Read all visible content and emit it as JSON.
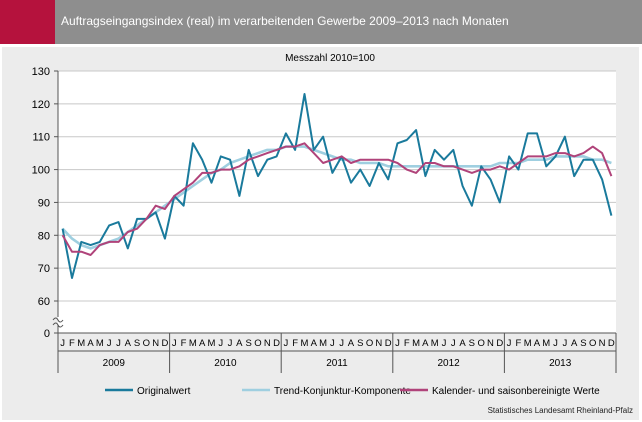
{
  "header": {
    "title": "Auftragseingangsindex (real) im verarbeitenden Gewerbe 2009–2013 nach Monaten"
  },
  "source": "Statistisches Landesamt Rheinland-Pfalz",
  "colors": {
    "header_bg": "#8e8e8e",
    "accent": "#b5123d",
    "panel_bg": "#ececec",
    "original": "#1a7a9c",
    "trend": "#9fcfe0",
    "adjusted": "#b0437a"
  },
  "chart_data": {
    "type": "line",
    "subtitle": "Messzahl 2010=100",
    "ylim": [
      0,
      130
    ],
    "axis_break": [
      0,
      60
    ],
    "yticks": [
      0,
      60,
      70,
      80,
      90,
      100,
      110,
      120,
      130
    ],
    "month_labels": [
      "J",
      "F",
      "M",
      "A",
      "M",
      "J",
      "J",
      "A",
      "S",
      "O",
      "N",
      "D",
      "J",
      "F",
      "M",
      "A",
      "M",
      "J",
      "J",
      "A",
      "S",
      "O",
      "N",
      "D",
      "J",
      "F",
      "M",
      "A",
      "M",
      "J",
      "J",
      "A",
      "S",
      "O",
      "N",
      "D",
      "J",
      "F",
      "M",
      "A",
      "M",
      "J",
      "J",
      "A",
      "S",
      "O",
      "N",
      "D",
      "J",
      "F",
      "M",
      "A",
      "M",
      "J",
      "J",
      "A",
      "S",
      "O",
      "N",
      "D"
    ],
    "years": [
      "2009",
      "2010",
      "2011",
      "2012",
      "2013"
    ],
    "grid": true,
    "legend_position": "bottom",
    "series": [
      {
        "name": "Originalwert",
        "values": [
          82,
          67,
          78,
          77,
          78,
          83,
          84,
          76,
          85,
          85,
          87,
          79,
          92,
          89,
          108,
          103,
          96,
          104,
          103,
          92,
          106,
          98,
          103,
          104,
          111,
          106,
          123,
          106,
          110,
          99,
          104,
          96,
          100,
          95,
          102,
          97,
          108,
          109,
          112,
          98,
          106,
          103,
          106,
          95,
          89,
          101,
          97,
          90,
          104,
          100,
          111,
          111,
          101,
          104,
          110,
          98,
          103,
          103,
          97,
          86
        ]
      },
      {
        "name": "Trend-Konjunktur-Komponente",
        "values": [
          82,
          79,
          77,
          76,
          77,
          78,
          79,
          81,
          83,
          85,
          87,
          89,
          91,
          93,
          95,
          97,
          99,
          100,
          102,
          103,
          104,
          105,
          106,
          106,
          107,
          107,
          107,
          106,
          105,
          104,
          103,
          103,
          102,
          102,
          102,
          101,
          101,
          101,
          101,
          101,
          101,
          101,
          101,
          101,
          101,
          101,
          101,
          102,
          102,
          102,
          103,
          103,
          103,
          104,
          104,
          104,
          104,
          103,
          103,
          102
        ]
      },
      {
        "name": "Kalender- und saisonbereinigte Werte",
        "values": [
          80,
          75,
          75,
          74,
          77,
          78,
          78,
          81,
          82,
          85,
          89,
          88,
          92,
          94,
          96,
          99,
          99,
          100,
          100,
          101,
          103,
          104,
          105,
          106,
          107,
          107,
          108,
          105,
          102,
          103,
          104,
          102,
          103,
          103,
          103,
          103,
          102,
          100,
          99,
          102,
          102,
          101,
          101,
          100,
          99,
          100,
          100,
          101,
          100,
          102,
          104,
          104,
          104,
          105,
          105,
          104,
          105,
          107,
          105,
          98
        ]
      }
    ]
  }
}
